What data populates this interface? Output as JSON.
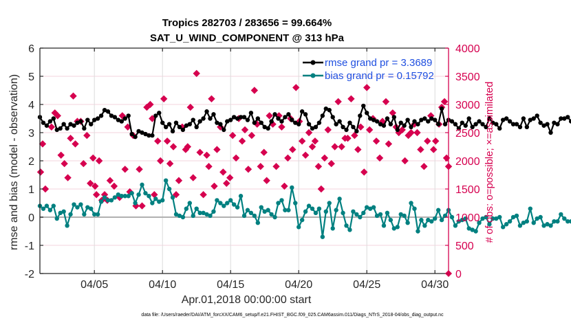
{
  "chart_data": {
    "type": "line",
    "title": [
      "Tropics 282703 / 283656 = 99.664%",
      "SAT_U_WIND_COMPONENT @ 313 hPa"
    ],
    "xlabel": "Apr.01,2018 00:00:00 start",
    "ylabel": "rmse and bias (model - observation)",
    "ylabel_right": "# of obs: o=possible; ×=assimilated",
    "footnote": "data file: /Users/raeder/DAI/ATM_forcXX/CAM6_setup/f.e21.FHIST_BGC.f09_025.CAM6assim.011/Diags_NTrS_2018-04/obs_diag_output.nc",
    "xlim": [
      1.0,
      31.0
    ],
    "ylim": [
      -2,
      6
    ],
    "ylim_right": [
      0,
      4000
    ],
    "x_ticks": [
      5,
      10,
      15,
      20,
      25,
      30
    ],
    "x_tick_labels": [
      "04/05",
      "04/10",
      "04/15",
      "04/20",
      "04/25",
      "04/30"
    ],
    "y_ticks": [
      -2,
      -1,
      0,
      1,
      2,
      3,
      4,
      5,
      6
    ],
    "y_tick_labels": [
      "-2",
      "-1",
      "0",
      "1",
      "2",
      "3",
      "4",
      "5",
      "6"
    ],
    "y_right_ticks": [
      0,
      500,
      1000,
      1500,
      2000,
      2500,
      3000,
      3500,
      4000
    ],
    "y_right_tick_labels": [
      "0",
      "500",
      "1000",
      "1500",
      "2000",
      "2500",
      "3000",
      "3500",
      "4000"
    ],
    "grid": true,
    "legend_position": "top-right",
    "colors": {
      "rmse": "#000000",
      "bias": "#008080",
      "obs": "#d6004f",
      "legend_text": "#1f4fe0",
      "zero_line": "#b0b0b0"
    },
    "x_start": 1.0,
    "x_step": 0.25,
    "series": [
      {
        "name": "rmse grand pr = 3.3689",
        "values": [
          3.55,
          3.35,
          3.25,
          3.4,
          3.5,
          3.1,
          3.15,
          3.3,
          3.15,
          3.3,
          3.25,
          3.35,
          3.4,
          3.15,
          3.45,
          3.3,
          3.45,
          3.5,
          3.6,
          3.8,
          3.75,
          3.6,
          3.55,
          3.45,
          3.4,
          3.5,
          3.6,
          2.95,
          2.85,
          3.05,
          3.0,
          2.95,
          2.9,
          2.9,
          3.6,
          3.7,
          3.35,
          3.2,
          3.3,
          3.05,
          3.35,
          3.2,
          3.1,
          3.25,
          3.3,
          3.45,
          3.2,
          3.4,
          3.5,
          3.75,
          3.5,
          3.65,
          3.35,
          3.3,
          3.1,
          3.4,
          3.45,
          3.55,
          3.5,
          3.55,
          3.55,
          3.45,
          3.7,
          3.35,
          3.5,
          3.35,
          3.2,
          3.15,
          3.4,
          3.65,
          3.5,
          3.4,
          3.55,
          3.65,
          3.45,
          3.35,
          3.3,
          3.75,
          3.65,
          3.3,
          3.15,
          3.2,
          3.35,
          3.6,
          3.85,
          3.8,
          3.55,
          3.3,
          3.4,
          3.2,
          3.1,
          3.35,
          3.2,
          3.05,
          3.6,
          3.95,
          3.7,
          3.5,
          3.45,
          3.4,
          3.3,
          3.25,
          3.5,
          3.3,
          3.55,
          3.1,
          3.35,
          3.25,
          3.45,
          3.2,
          3.4,
          3.3,
          3.45,
          3.5,
          3.4,
          3.5,
          3.45,
          3.3,
          3.85,
          3.3,
          3.45,
          3.4,
          3.3,
          3.15,
          3.35,
          3.25,
          3.5,
          3.2,
          3.3,
          3.4,
          3.3,
          3.2,
          3.5,
          3.35,
          3.3,
          3.15,
          3.45,
          3.5,
          3.4,
          3.3,
          3.3,
          3.2,
          3.5,
          3.2,
          3.45,
          3.5,
          3.6,
          3.35,
          3.25,
          3.3,
          3.0,
          3.35,
          3.3,
          3.5,
          3.5,
          3.55,
          3.4,
          3.35,
          3.1,
          3.3,
          3.3,
          3.45,
          3.6,
          3.7,
          3.5,
          3.4,
          3.3,
          3.45,
          3.35,
          3.35,
          3.4,
          3.25,
          3.1,
          3.45,
          3.3,
          3.55,
          3.3,
          3.2,
          3.45,
          3.05,
          3.3,
          3.3,
          3.5,
          3.55,
          3.2,
          3.1,
          3.3,
          3.15,
          3.1,
          3.3,
          3.35,
          3.45,
          3.2,
          3.3,
          3.2,
          3.2,
          3.1,
          3.25,
          3.1,
          3.3,
          3.35,
          3.45
        ]
      },
      {
        "name": "bias grand pr = 0.15792",
        "values": [
          0.4,
          0.3,
          0.4,
          0.25,
          0.4,
          -0.05,
          0.15,
          0.2,
          -0.3,
          0.1,
          0.45,
          0.35,
          0.45,
          0.1,
          0.35,
          0.3,
          0.1,
          0.1,
          0.55,
          0.7,
          0.6,
          0.6,
          0.7,
          0.8,
          0.75,
          0.75,
          0.75,
          0.85,
          0.5,
          0.8,
          1.15,
          0.85,
          0.75,
          0.5,
          0.65,
          0.55,
          0.6,
          1.3,
          1.0,
          0.7,
          0.1,
          0.05,
          0.0,
          0.3,
          0.5,
          0.05,
          0.3,
          0.15,
          0.15,
          0.1,
          0.05,
          0.2,
          0.6,
          0.5,
          0.4,
          0.5,
          0.6,
          0.45,
          0.35,
          0.75,
          0.05,
          0.25,
          0.15,
          0.05,
          -0.2,
          0.35,
          0.2,
          0.25,
          0.1,
          0.0,
          0.5,
          0.6,
          0.25,
          0.25,
          1.05,
          0.5,
          -0.35,
          -0.1,
          0.2,
          0.4,
          0.3,
          0.15,
          0.3,
          -0.7,
          0.2,
          0.5,
          -0.4,
          0.25,
          0.65,
          0.15,
          -0.3,
          -0.45,
          0.2,
          0.1,
          0.0,
          0.15,
          0.35,
          0.3,
          0.35,
          0.05,
          0.1,
          -0.3,
          0.15,
          -0.1,
          -0.4,
          -0.35,
          0.1,
          0.05,
          -0.2,
          0.5,
          0.3,
          -0.5,
          -0.1,
          -0.3,
          -0.1,
          -0.15,
          -0.05,
          0.25,
          -0.1,
          0.05,
          0.25,
          0.0,
          -0.3,
          -0.15,
          -0.1,
          -0.05,
          -0.4,
          -0.45,
          -0.5,
          -0.2,
          -0.05,
          0.0,
          -0.25,
          -0.05,
          -0.05,
          0.0,
          -0.35,
          -0.25,
          -0.15,
          0.0,
          0.05,
          -0.3,
          -0.2,
          -0.15,
          0.3,
          -0.2,
          -0.05,
          0.0,
          -0.3,
          -0.25,
          -0.3,
          -0.15,
          -0.15,
          0.1,
          -0.05,
          -0.15,
          -0.15,
          -0.2,
          0.1,
          0.1,
          0.0,
          -0.2,
          -0.15,
          -0.05,
          -0.25,
          -0.1,
          0.15,
          0.0,
          -0.1,
          -0.15,
          0.1,
          -0.05,
          -0.25,
          0.1,
          0.0,
          -0.1,
          -0.1,
          0.05,
          0.05,
          -0.35,
          -0.2,
          0.1,
          0.0,
          -0.1,
          -0.15,
          0.2,
          -0.4,
          -0.1,
          -0.15,
          -0.05,
          0.05,
          -0.2,
          -0.05,
          -0.45,
          -0.15,
          0.25
        ]
      }
    ],
    "obs_counts": {
      "name": "# of obs (assimilated/possible)",
      "x": [
        1.05,
        1.2,
        1.4,
        1.85,
        2.1,
        2.3,
        2.55,
        2.8,
        3.05,
        3.25,
        3.45,
        3.6,
        3.75,
        4.0,
        4.2,
        4.45,
        4.7,
        4.9,
        5.05,
        5.15,
        5.35,
        5.55,
        5.75,
        5.95,
        6.15,
        6.45,
        6.85,
        7.05,
        7.25,
        7.45,
        7.6,
        7.85,
        8.05,
        8.3,
        8.5,
        8.85,
        9.1,
        9.25,
        9.4,
        9.65,
        9.85,
        10.1,
        10.35,
        10.55,
        10.8,
        11.0,
        11.2,
        11.45,
        11.7,
        11.85,
        12.05,
        12.25,
        12.5,
        12.75,
        13.0,
        13.25,
        13.4,
        13.6,
        13.8,
        14.0,
        14.25,
        14.45,
        14.7,
        14.95,
        15.15,
        15.4,
        15.6,
        15.85,
        16.05,
        16.3,
        16.55,
        16.75,
        16.95,
        17.2,
        17.45,
        17.65,
        17.85,
        18.1,
        18.35,
        18.55,
        18.75,
        18.95,
        19.2,
        19.4,
        19.55,
        19.8,
        20.05,
        20.25,
        20.5,
        20.75,
        21.0,
        21.2,
        21.45,
        21.65,
        21.9,
        22.15,
        22.4,
        22.65,
        22.9,
        23.15,
        23.4,
        23.6,
        23.85,
        24.1,
        24.35,
        24.55,
        24.8,
        25.0,
        25.2,
        25.45,
        25.7,
        25.95,
        26.15,
        26.4,
        26.6,
        26.9,
        27.15,
        27.35,
        27.6,
        27.8,
        28.05,
        28.25,
        28.5,
        28.7,
        28.95,
        29.2,
        29.45,
        29.7,
        29.9,
        30.05,
        30.3,
        30.5,
        30.7,
        30.85,
        31.0
      ],
      "values": [
        1800,
        2300,
        1500,
        2600,
        2850,
        2800,
        2100,
        1950,
        1700,
        2400,
        3150,
        2300,
        2700,
        2700,
        1950,
        2450,
        1600,
        2050,
        1550,
        1400,
        2000,
        1300,
        1400,
        1300,
        1650,
        1550,
        1350,
        2800,
        1850,
        2600,
        1450,
        2450,
        1200,
        1850,
        1200,
        2950,
        3000,
        2750,
        1400,
        2350,
        2000,
        3100,
        2350,
        1950,
        2250,
        1400,
        1650,
        2600,
        2200,
        2250,
        2950,
        1700,
        3550,
        2150,
        1400,
        2100,
        1900,
        3100,
        1550,
        2200,
        2600,
        1800,
        1600,
        1700,
        2450,
        2050,
        2750,
        2350,
        2550,
        1850,
        2450,
        3250,
        2650,
        1900,
        2150,
        1650,
        2800,
        2650,
        1900,
        2800,
        2600,
        1550,
        2050,
        2750,
        2200,
        3300,
        2700,
        2350,
        2100,
        2500,
        2250,
        2350,
        1900,
        1500,
        2050,
        2550,
        1950,
        2250,
        3050,
        2250,
        2400,
        2400,
        3100,
        2450,
        2200,
        2600,
        1800,
        3300,
        2550,
        2750,
        2350,
        2050,
        2700,
        3050,
        2300,
        2850,
        2600,
        2500,
        2550,
        2000,
        2450,
        2500,
        2650,
        2500,
        2200,
        1900,
        2350,
        2800,
        2200,
        2350,
        2650,
        2950,
        3050,
        2050,
        1900
      ]
    }
  }
}
